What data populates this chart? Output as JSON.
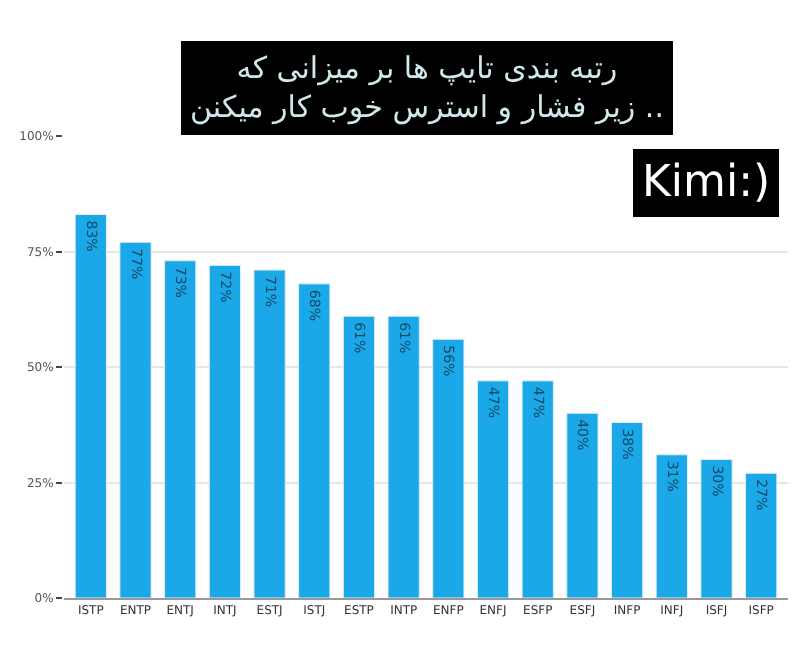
{
  "chart_data": {
    "type": "bar",
    "title": "رتبه بندی تایپ ها بر میزانی که\nزیر فشار و استرس خوب کار میکنن ..",
    "annotations": [
      "Kimi:)"
    ],
    "categories": [
      "ISTP",
      "ENTP",
      "ENTJ",
      "INTJ",
      "ESTJ",
      "ISTJ",
      "ESTP",
      "INTP",
      "ENFP",
      "ENFJ",
      "ESFP",
      "ESFJ",
      "INFP",
      "INFJ",
      "ISFJ",
      "ISFP"
    ],
    "values": [
      83,
      77,
      73,
      72,
      71,
      68,
      61,
      61,
      56,
      47,
      47,
      40,
      38,
      31,
      30,
      27
    ],
    "value_labels": [
      "83%",
      "77%",
      "73%",
      "72%",
      "71%",
      "68%",
      "61%",
      "61%",
      "56%",
      "47%",
      "47%",
      "40%",
      "38%",
      "31%",
      "30%",
      "27%"
    ],
    "color": "#1ba8e8",
    "ylim": [
      0,
      100
    ],
    "yticks": [
      {
        "value": 0,
        "label": "0%"
      },
      {
        "value": 25,
        "label": "25%"
      },
      {
        "value": 50,
        "label": "50%"
      },
      {
        "value": 75,
        "label": "75%"
      },
      {
        "value": 100,
        "label": "100%"
      }
    ],
    "grid": "y",
    "legend": false
  }
}
